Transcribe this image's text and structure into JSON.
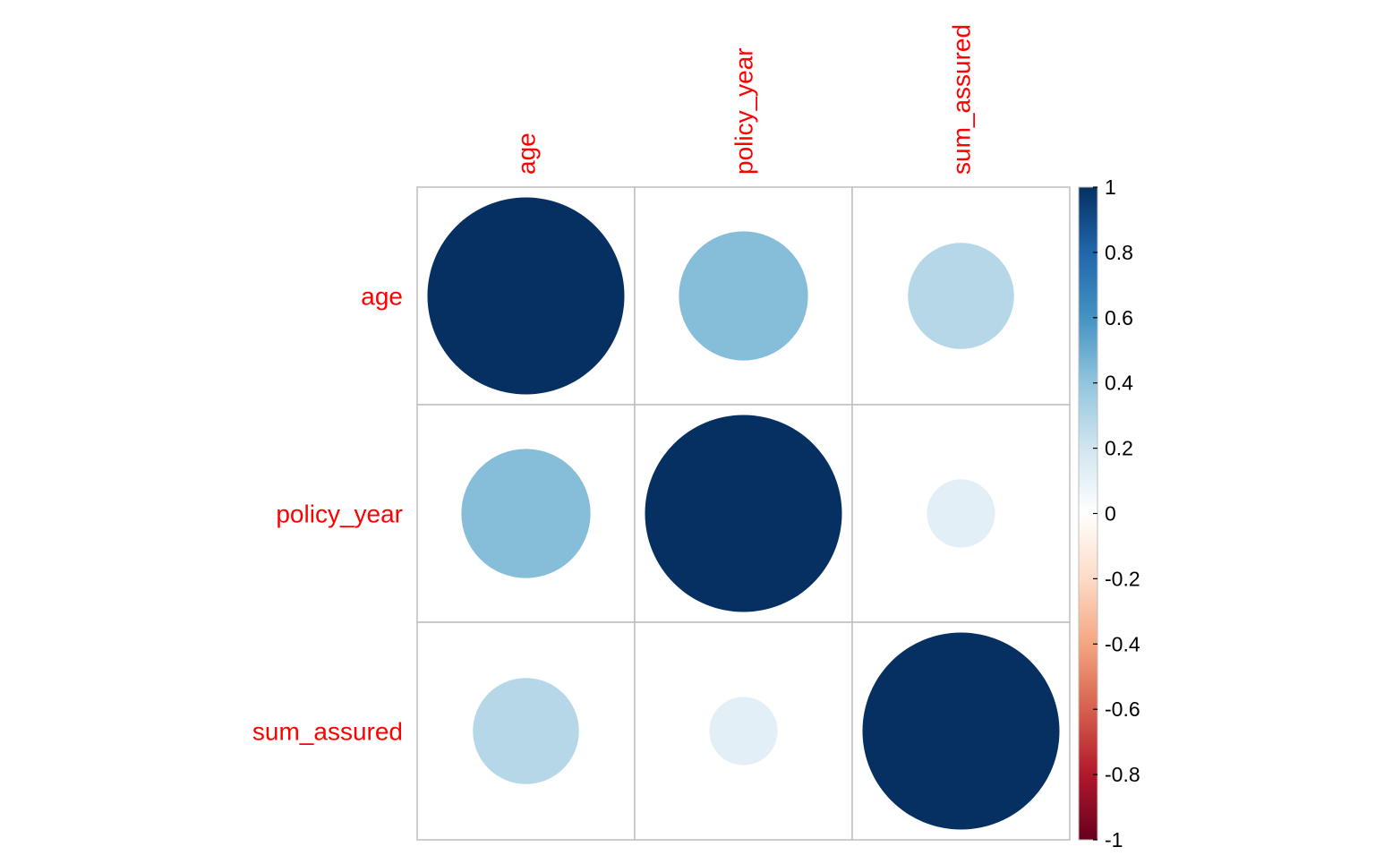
{
  "chart_data": {
    "type": "heatmap",
    "variables": [
      "age",
      "policy_year",
      "sum_assured"
    ],
    "matrix": [
      [
        1.0,
        0.43,
        0.29
      ],
      [
        0.43,
        1.0,
        0.12
      ],
      [
        0.29,
        0.12,
        1.0
      ]
    ],
    "legend": {
      "ticks": [
        "1",
        "0.8",
        "0.6",
        "0.4",
        "0.2",
        "0",
        "-0.2",
        "-0.4",
        "-0.6",
        "-0.8",
        "-1"
      ],
      "range": [
        -1,
        1
      ],
      "placement": "right"
    },
    "grid": true,
    "label_color": "#FF0000",
    "colormap": {
      "negative_end": "#67001F",
      "mid": "#FFFFFF",
      "positive_end": "#053061"
    }
  }
}
